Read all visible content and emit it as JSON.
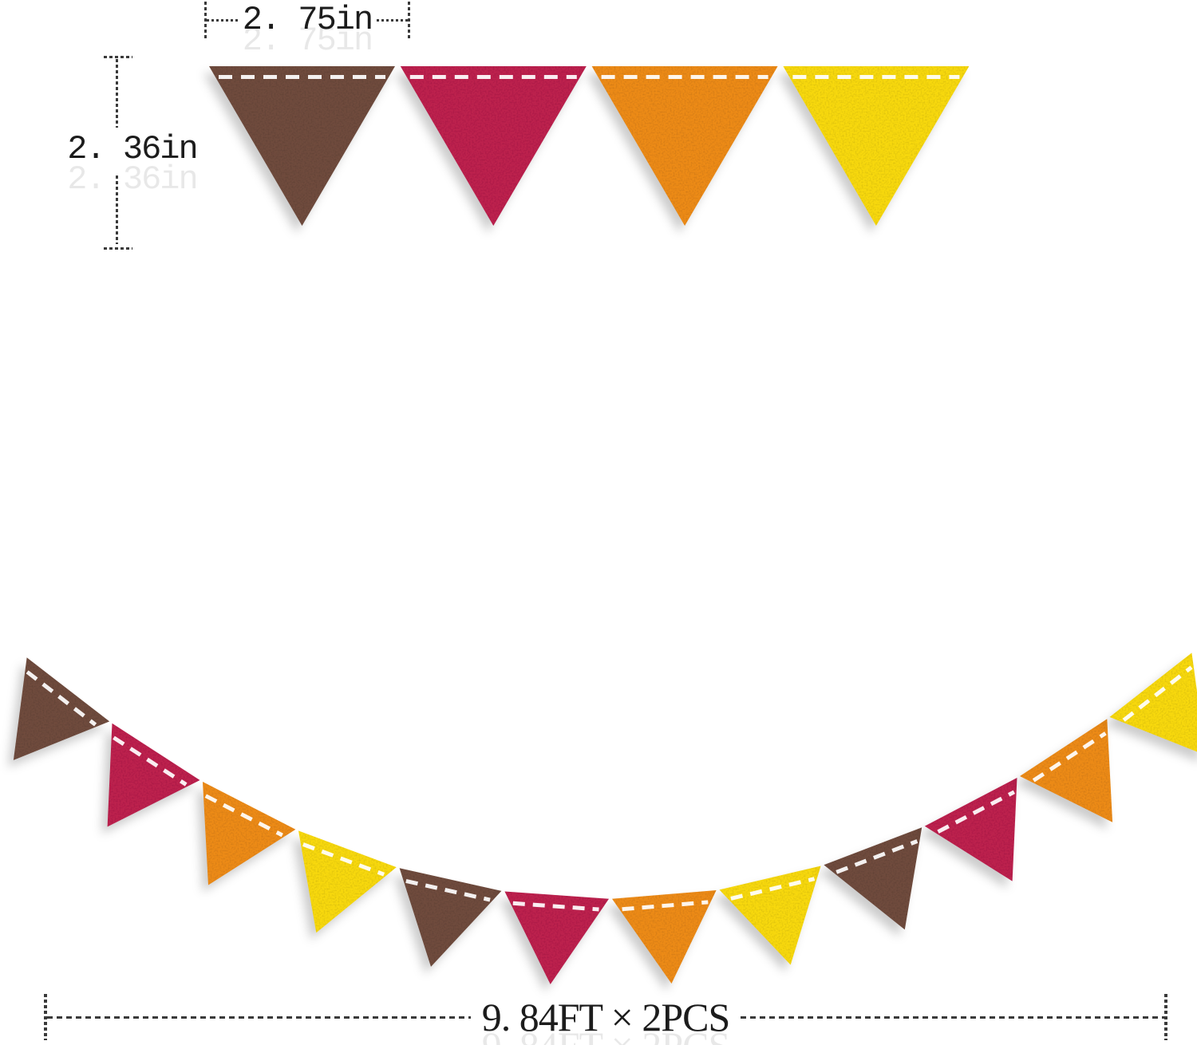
{
  "annotations": {
    "flag_width_label": "2. 75in",
    "flag_height_label": "2. 36in",
    "banner_length_label": "9. 84FT × 2PCS"
  },
  "palette": {
    "brown": "#6F4B3D",
    "red": "#BD204E",
    "orange": "#ED8B19",
    "yellow": "#F8D90E",
    "stitch_white": "#FFFFFF",
    "dimension_line": "#3A3A3A",
    "dimension_text": "#1C1C1C"
  },
  "top_row": {
    "flags": [
      "brown",
      "red",
      "orange",
      "yellow"
    ]
  },
  "garland": {
    "flags": [
      "brown",
      "red",
      "orange",
      "yellow",
      "brown",
      "red",
      "orange",
      "yellow",
      "brown",
      "red",
      "orange",
      "yellow"
    ]
  }
}
